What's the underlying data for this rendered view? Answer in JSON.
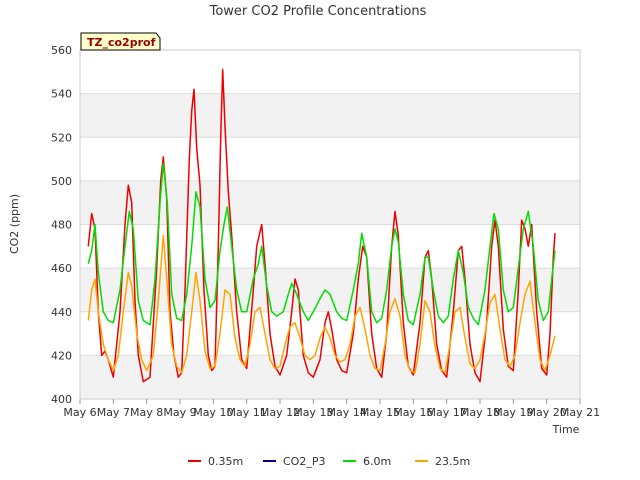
{
  "chart_data": {
    "type": "line",
    "title": "Tower CO2 Profile Concentrations",
    "site_label": "TZ_co2prof",
    "xlabel": "Time",
    "ylabel": "CO2 (ppm)",
    "ylim": [
      400,
      560
    ],
    "xlim": [
      6,
      21
    ],
    "y_ticks": [
      400,
      420,
      440,
      460,
      480,
      500,
      520,
      540,
      560
    ],
    "x_ticks": [
      6,
      7,
      8,
      9,
      10,
      11,
      12,
      13,
      14,
      15,
      16,
      17,
      18,
      19,
      20,
      21
    ],
    "x_tick_labels": [
      "May 6",
      "May 7",
      "May 8",
      "May 9",
      "May 10",
      "May 11",
      "May 12",
      "May 13",
      "May 14",
      "May 15",
      "May 16",
      "May 17",
      "May 18",
      "May 19",
      "May 20",
      "May 21"
    ],
    "grid": true,
    "legend_position": "bottom",
    "series": [
      {
        "name": "0.35m",
        "color": "#ee0000",
        "points": [
          [
            6.25,
            470
          ],
          [
            6.35,
            485
          ],
          [
            6.45,
            478
          ],
          [
            6.55,
            440
          ],
          [
            6.65,
            420
          ],
          [
            6.75,
            422
          ],
          [
            6.85,
            418
          ],
          [
            7.0,
            410
          ],
          [
            7.2,
            440
          ],
          [
            7.35,
            480
          ],
          [
            7.45,
            498
          ],
          [
            7.55,
            490
          ],
          [
            7.65,
            445
          ],
          [
            7.75,
            420
          ],
          [
            7.9,
            408
          ],
          [
            8.1,
            410
          ],
          [
            8.3,
            460
          ],
          [
            8.42,
            500
          ],
          [
            8.5,
            511
          ],
          [
            8.6,
            492
          ],
          [
            8.7,
            440
          ],
          [
            8.82,
            420
          ],
          [
            8.95,
            410
          ],
          [
            9.05,
            412
          ],
          [
            9.15,
            450
          ],
          [
            9.28,
            510
          ],
          [
            9.35,
            532
          ],
          [
            9.42,
            542
          ],
          [
            9.5,
            515
          ],
          [
            9.6,
            498
          ],
          [
            9.72,
            450
          ],
          [
            9.85,
            420
          ],
          [
            9.95,
            413
          ],
          [
            10.05,
            415
          ],
          [
            10.15,
            470
          ],
          [
            10.22,
            520
          ],
          [
            10.28,
            551
          ],
          [
            10.35,
            525
          ],
          [
            10.45,
            495
          ],
          [
            10.55,
            475
          ],
          [
            10.7,
            440
          ],
          [
            10.85,
            418
          ],
          [
            11.0,
            414
          ],
          [
            11.2,
            450
          ],
          [
            11.3,
            470
          ],
          [
            11.45,
            480
          ],
          [
            11.55,
            462
          ],
          [
            11.7,
            430
          ],
          [
            11.85,
            415
          ],
          [
            12.0,
            411
          ],
          [
            12.2,
            420
          ],
          [
            12.35,
            440
          ],
          [
            12.45,
            455
          ],
          [
            12.55,
            450
          ],
          [
            12.7,
            420
          ],
          [
            12.85,
            412
          ],
          [
            13.0,
            410
          ],
          [
            13.2,
            418
          ],
          [
            13.35,
            435
          ],
          [
            13.45,
            440
          ],
          [
            13.55,
            432
          ],
          [
            13.7,
            418
          ],
          [
            13.85,
            413
          ],
          [
            14.0,
            412
          ],
          [
            14.2,
            430
          ],
          [
            14.35,
            455
          ],
          [
            14.48,
            470
          ],
          [
            14.6,
            465
          ],
          [
            14.75,
            430
          ],
          [
            14.9,
            414
          ],
          [
            15.05,
            410
          ],
          [
            15.2,
            430
          ],
          [
            15.35,
            470
          ],
          [
            15.45,
            486
          ],
          [
            15.55,
            475
          ],
          [
            15.7,
            435
          ],
          [
            15.85,
            415
          ],
          [
            16.0,
            411
          ],
          [
            16.2,
            435
          ],
          [
            16.35,
            465
          ],
          [
            16.45,
            468
          ],
          [
            16.55,
            455
          ],
          [
            16.7,
            425
          ],
          [
            16.85,
            413
          ],
          [
            17.0,
            410
          ],
          [
            17.2,
            440
          ],
          [
            17.35,
            468
          ],
          [
            17.45,
            470
          ],
          [
            17.55,
            455
          ],
          [
            17.7,
            425
          ],
          [
            17.85,
            412
          ],
          [
            18.0,
            408
          ],
          [
            18.2,
            435
          ],
          [
            18.35,
            470
          ],
          [
            18.45,
            482
          ],
          [
            18.55,
            470
          ],
          [
            18.7,
            432
          ],
          [
            18.85,
            415
          ],
          [
            19.0,
            413
          ],
          [
            19.15,
            450
          ],
          [
            19.25,
            482
          ],
          [
            19.35,
            478
          ],
          [
            19.45,
            470
          ],
          [
            19.55,
            480
          ],
          [
            19.7,
            440
          ],
          [
            19.85,
            414
          ],
          [
            20.0,
            411
          ],
          [
            20.1,
            430
          ],
          [
            20.2,
            465
          ],
          [
            20.25,
            476
          ]
        ]
      },
      {
        "name": "CO2_P3",
        "color": "#00008b",
        "points": []
      },
      {
        "name": "6.0m",
        "color": "#00dd00",
        "points": [
          [
            6.25,
            462
          ],
          [
            6.35,
            468
          ],
          [
            6.45,
            480
          ],
          [
            6.55,
            458
          ],
          [
            6.7,
            440
          ],
          [
            6.85,
            436
          ],
          [
            7.0,
            435
          ],
          [
            7.2,
            450
          ],
          [
            7.35,
            470
          ],
          [
            7.48,
            486
          ],
          [
            7.6,
            478
          ],
          [
            7.75,
            445
          ],
          [
            7.9,
            436
          ],
          [
            8.1,
            434
          ],
          [
            8.25,
            455
          ],
          [
            8.4,
            490
          ],
          [
            8.5,
            508
          ],
          [
            8.62,
            490
          ],
          [
            8.75,
            448
          ],
          [
            8.9,
            437
          ],
          [
            9.05,
            436
          ],
          [
            9.2,
            448
          ],
          [
            9.35,
            470
          ],
          [
            9.48,
            495
          ],
          [
            9.6,
            488
          ],
          [
            9.75,
            455
          ],
          [
            9.9,
            442
          ],
          [
            10.05,
            445
          ],
          [
            10.2,
            468
          ],
          [
            10.32,
            480
          ],
          [
            10.42,
            488
          ],
          [
            10.55,
            470
          ],
          [
            10.7,
            450
          ],
          [
            10.85,
            440
          ],
          [
            11.0,
            440
          ],
          [
            11.2,
            455
          ],
          [
            11.35,
            462
          ],
          [
            11.45,
            470
          ],
          [
            11.6,
            452
          ],
          [
            11.75,
            440
          ],
          [
            11.9,
            438
          ],
          [
            12.1,
            440
          ],
          [
            12.25,
            448
          ],
          [
            12.35,
            453
          ],
          [
            12.5,
            448
          ],
          [
            12.7,
            440
          ],
          [
            12.85,
            436
          ],
          [
            13.0,
            440
          ],
          [
            13.2,
            446
          ],
          [
            13.35,
            450
          ],
          [
            13.5,
            448
          ],
          [
            13.7,
            440
          ],
          [
            13.85,
            437
          ],
          [
            14.0,
            436
          ],
          [
            14.2,
            450
          ],
          [
            14.35,
            462
          ],
          [
            14.45,
            476
          ],
          [
            14.6,
            465
          ],
          [
            14.75,
            440
          ],
          [
            14.9,
            435
          ],
          [
            15.05,
            437
          ],
          [
            15.2,
            450
          ],
          [
            15.35,
            470
          ],
          [
            15.45,
            478
          ],
          [
            15.55,
            472
          ],
          [
            15.7,
            448
          ],
          [
            15.85,
            436
          ],
          [
            16.0,
            434
          ],
          [
            16.2,
            448
          ],
          [
            16.35,
            465
          ],
          [
            16.45,
            465
          ],
          [
            16.6,
            450
          ],
          [
            16.75,
            438
          ],
          [
            16.9,
            435
          ],
          [
            17.05,
            438
          ],
          [
            17.2,
            455
          ],
          [
            17.35,
            468
          ],
          [
            17.5,
            458
          ],
          [
            17.65,
            442
          ],
          [
            17.8,
            437
          ],
          [
            17.95,
            434
          ],
          [
            18.15,
            450
          ],
          [
            18.3,
            470
          ],
          [
            18.42,
            485
          ],
          [
            18.55,
            478
          ],
          [
            18.7,
            450
          ],
          [
            18.85,
            440
          ],
          [
            19.0,
            442
          ],
          [
            19.15,
            460
          ],
          [
            19.3,
            478
          ],
          [
            19.45,
            486
          ],
          [
            19.6,
            470
          ],
          [
            19.75,
            445
          ],
          [
            19.9,
            436
          ],
          [
            20.05,
            440
          ],
          [
            20.15,
            455
          ],
          [
            20.25,
            468
          ]
        ]
      },
      {
        "name": "23.5m",
        "color": "#ffa500",
        "points": [
          [
            6.25,
            436
          ],
          [
            6.35,
            450
          ],
          [
            6.45,
            455
          ],
          [
            6.55,
            440
          ],
          [
            6.7,
            425
          ],
          [
            6.85,
            418
          ],
          [
            7.0,
            413
          ],
          [
            7.15,
            420
          ],
          [
            7.3,
            440
          ],
          [
            7.45,
            458
          ],
          [
            7.55,
            452
          ],
          [
            7.7,
            430
          ],
          [
            7.85,
            418
          ],
          [
            8.0,
            413
          ],
          [
            8.2,
            420
          ],
          [
            8.35,
            445
          ],
          [
            8.5,
            475
          ],
          [
            8.6,
            455
          ],
          [
            8.75,
            425
          ],
          [
            8.9,
            415
          ],
          [
            9.05,
            412
          ],
          [
            9.2,
            420
          ],
          [
            9.35,
            440
          ],
          [
            9.48,
            458
          ],
          [
            9.6,
            445
          ],
          [
            9.75,
            422
          ],
          [
            9.9,
            414
          ],
          [
            10.05,
            415
          ],
          [
            10.2,
            430
          ],
          [
            10.35,
            450
          ],
          [
            10.5,
            448
          ],
          [
            10.65,
            428
          ],
          [
            10.8,
            418
          ],
          [
            10.95,
            415
          ],
          [
            11.1,
            425
          ],
          [
            11.25,
            440
          ],
          [
            11.4,
            442
          ],
          [
            11.55,
            430
          ],
          [
            11.7,
            418
          ],
          [
            11.85,
            414
          ],
          [
            12.0,
            415
          ],
          [
            12.15,
            425
          ],
          [
            12.3,
            433
          ],
          [
            12.45,
            435
          ],
          [
            12.6,
            428
          ],
          [
            12.75,
            420
          ],
          [
            12.9,
            418
          ],
          [
            13.05,
            420
          ],
          [
            13.2,
            428
          ],
          [
            13.35,
            433
          ],
          [
            13.5,
            428
          ],
          [
            13.65,
            420
          ],
          [
            13.8,
            417
          ],
          [
            13.95,
            418
          ],
          [
            14.1,
            425
          ],
          [
            14.25,
            438
          ],
          [
            14.4,
            442
          ],
          [
            14.55,
            432
          ],
          [
            14.7,
            420
          ],
          [
            14.85,
            414
          ],
          [
            15.0,
            413
          ],
          [
            15.15,
            425
          ],
          [
            15.3,
            440
          ],
          [
            15.45,
            446
          ],
          [
            15.6,
            438
          ],
          [
            15.75,
            420
          ],
          [
            15.9,
            413
          ],
          [
            16.05,
            412
          ],
          [
            16.2,
            425
          ],
          [
            16.35,
            445
          ],
          [
            16.5,
            440
          ],
          [
            16.65,
            424
          ],
          [
            16.8,
            414
          ],
          [
            16.95,
            412
          ],
          [
            17.1,
            425
          ],
          [
            17.25,
            440
          ],
          [
            17.4,
            442
          ],
          [
            17.55,
            428
          ],
          [
            17.7,
            416
          ],
          [
            17.85,
            414
          ],
          [
            18.0,
            418
          ],
          [
            18.15,
            430
          ],
          [
            18.3,
            444
          ],
          [
            18.45,
            448
          ],
          [
            18.6,
            432
          ],
          [
            18.75,
            418
          ],
          [
            18.9,
            415
          ],
          [
            19.05,
            420
          ],
          [
            19.2,
            435
          ],
          [
            19.35,
            448
          ],
          [
            19.5,
            454
          ],
          [
            19.65,
            435
          ],
          [
            19.8,
            418
          ],
          [
            19.95,
            413
          ],
          [
            20.1,
            420
          ],
          [
            20.25,
            429
          ]
        ]
      }
    ]
  }
}
